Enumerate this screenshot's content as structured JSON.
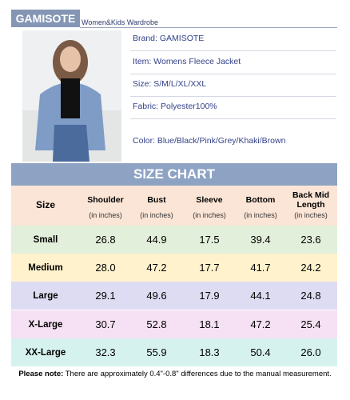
{
  "header": {
    "brand": "GAMISOTE",
    "subtitle": "Women&Kids Wardrobe"
  },
  "info": [
    "Brand: GAMISOTE",
    "Item: Womens Fleece Jacket",
    "Size: S/M/L/XL/XXL",
    "Fabric: Polyester100%",
    "Color: Blue/Black/Pink/Grey/Khaki/Brown"
  ],
  "table": {
    "title": "SIZE CHART",
    "columns": [
      {
        "name": "Size"
      },
      {
        "name": "Shoulder",
        "unit": "(in inches)"
      },
      {
        "name": "Bust",
        "unit": "(in inches)"
      },
      {
        "name": "Sleeve",
        "unit": "(in inches)"
      },
      {
        "name": "Bottom",
        "unit": "(in inches)"
      },
      {
        "name": "Back Mid Length",
        "unit": "(in inches)"
      }
    ],
    "rows": [
      [
        "Small",
        "26.8",
        "44.9",
        "17.5",
        "39.4",
        "23.6"
      ],
      [
        "Medium",
        "28.0",
        "47.2",
        "17.7",
        "41.7",
        "24.2"
      ],
      [
        "Large",
        "29.1",
        "49.6",
        "17.9",
        "44.1",
        "24.8"
      ],
      [
        "X-Large",
        "30.7",
        "52.8",
        "18.1",
        "47.2",
        "25.4"
      ],
      [
        "XX-Large",
        "32.3",
        "55.9",
        "18.3",
        "50.4",
        "26.0"
      ]
    ]
  },
  "note": {
    "label": "Please note:",
    "text": "There are approximately 0.4\"-0.8\" differences due to the manual measurement."
  }
}
